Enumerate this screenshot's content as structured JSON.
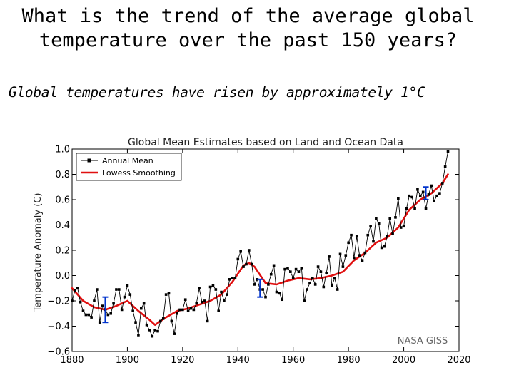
{
  "slide": {
    "title_line1": "What is the trend of the average global",
    "title_line2": "temperature over the past 150 years?",
    "subtitle": "Global temperatures have risen by approximately 1°C"
  },
  "chart_data": {
    "type": "line",
    "title": "Global Mean Estimates based on Land and Ocean Data",
    "xlabel": "",
    "ylabel": "Temperature Anomaly (C)",
    "xlim": [
      1880,
      2020
    ],
    "ylim": [
      -0.6,
      1.0
    ],
    "xticks": [
      "1880",
      "1900",
      "1920",
      "1940",
      "1960",
      "1980",
      "2000",
      "2020"
    ],
    "yticks": [
      "1.0",
      "0.8",
      "0.6",
      "0.4",
      "0.2",
      "0.0",
      "−0.2",
      "−0.4",
      "−0.6"
    ],
    "xtick_values": [
      1880,
      1900,
      1920,
      1940,
      1960,
      1980,
      2000,
      2020
    ],
    "ytick_values": [
      1.0,
      0.8,
      0.6,
      0.4,
      0.2,
      0.0,
      -0.2,
      -0.4,
      -0.6
    ],
    "watermark": "NASA GISS",
    "legend_position": "top-left",
    "grid": false,
    "series": [
      {
        "name": "Annual Mean",
        "color": "#000000",
        "marker": "square",
        "x": [
          1880,
          1881,
          1882,
          1883,
          1884,
          1885,
          1886,
          1887,
          1888,
          1889,
          1890,
          1891,
          1892,
          1893,
          1894,
          1895,
          1896,
          1897,
          1898,
          1899,
          1900,
          1901,
          1902,
          1903,
          1904,
          1905,
          1906,
          1907,
          1908,
          1909,
          1910,
          1911,
          1912,
          1913,
          1914,
          1915,
          1916,
          1917,
          1918,
          1919,
          1920,
          1921,
          1922,
          1923,
          1924,
          1925,
          1926,
          1927,
          1928,
          1929,
          1930,
          1931,
          1932,
          1933,
          1934,
          1935,
          1936,
          1937,
          1938,
          1939,
          1940,
          1941,
          1942,
          1943,
          1944,
          1945,
          1946,
          1947,
          1948,
          1949,
          1950,
          1951,
          1952,
          1953,
          1954,
          1955,
          1956,
          1957,
          1958,
          1959,
          1960,
          1961,
          1962,
          1963,
          1964,
          1965,
          1966,
          1967,
          1968,
          1969,
          1970,
          1971,
          1972,
          1973,
          1974,
          1975,
          1976,
          1977,
          1978,
          1979,
          1980,
          1981,
          1982,
          1983,
          1984,
          1985,
          1986,
          1987,
          1988,
          1989,
          1990,
          1991,
          1992,
          1993,
          1994,
          1995,
          1996,
          1997,
          1998,
          1999,
          2000,
          2001,
          2002,
          2003,
          2004,
          2005,
          2006,
          2007,
          2008,
          2009,
          2010,
          2011,
          2012,
          2013,
          2014,
          2015,
          2016
        ],
        "values": [
          -0.2,
          -0.12,
          -0.1,
          -0.21,
          -0.28,
          -0.31,
          -0.31,
          -0.33,
          -0.2,
          -0.11,
          -0.37,
          -0.24,
          -0.27,
          -0.31,
          -0.3,
          -0.22,
          -0.11,
          -0.11,
          -0.27,
          -0.17,
          -0.08,
          -0.15,
          -0.28,
          -0.37,
          -0.47,
          -0.26,
          -0.22,
          -0.39,
          -0.43,
          -0.48,
          -0.43,
          -0.44,
          -0.36,
          -0.34,
          -0.15,
          -0.14,
          -0.36,
          -0.46,
          -0.3,
          -0.27,
          -0.27,
          -0.19,
          -0.28,
          -0.26,
          -0.27,
          -0.22,
          -0.1,
          -0.21,
          -0.2,
          -0.36,
          -0.09,
          -0.08,
          -0.11,
          -0.28,
          -0.13,
          -0.2,
          -0.15,
          -0.03,
          -0.02,
          -0.02,
          0.13,
          0.19,
          0.07,
          0.09,
          0.2,
          0.09,
          -0.07,
          -0.03,
          -0.11,
          -0.11,
          -0.17,
          -0.07,
          0.01,
          0.08,
          -0.13,
          -0.14,
          -0.19,
          0.05,
          0.06,
          0.03,
          -0.02,
          0.05,
          0.03,
          0.06,
          -0.2,
          -0.11,
          -0.06,
          -0.02,
          -0.07,
          0.07,
          0.03,
          -0.09,
          0.02,
          0.15,
          -0.08,
          -0.02,
          -0.11,
          0.17,
          0.07,
          0.16,
          0.26,
          0.32,
          0.14,
          0.31,
          0.16,
          0.12,
          0.18,
          0.32,
          0.39,
          0.27,
          0.45,
          0.41,
          0.22,
          0.23,
          0.31,
          0.45,
          0.33,
          0.46,
          0.61,
          0.38,
          0.39,
          0.53,
          0.63,
          0.62,
          0.53,
          0.68,
          0.63,
          0.66,
          0.53,
          0.64,
          0.71,
          0.59,
          0.63,
          0.65,
          0.73,
          0.86,
          0.98
        ]
      },
      {
        "name": "Lowess Smoothing",
        "color": "#e01010",
        "x": [
          1880,
          1884,
          1888,
          1892,
          1896,
          1900,
          1904,
          1908,
          1910,
          1914,
          1918,
          1922,
          1926,
          1930,
          1934,
          1938,
          1942,
          1944,
          1946,
          1950,
          1954,
          1958,
          1962,
          1966,
          1970,
          1974,
          1978,
          1982,
          1986,
          1990,
          1994,
          1998,
          2002,
          2006,
          2010,
          2014,
          2016
        ],
        "values": [
          -0.1,
          -0.2,
          -0.25,
          -0.27,
          -0.24,
          -0.2,
          -0.28,
          -0.35,
          -0.39,
          -0.33,
          -0.28,
          -0.26,
          -0.23,
          -0.2,
          -0.15,
          -0.05,
          0.08,
          0.1,
          0.07,
          -0.06,
          -0.07,
          -0.04,
          -0.02,
          -0.03,
          -0.02,
          0.0,
          0.03,
          0.12,
          0.18,
          0.26,
          0.3,
          0.38,
          0.52,
          0.6,
          0.65,
          0.73,
          0.8
        ]
      }
    ],
    "error_bars": {
      "color": "#0033cc",
      "bars": [
        {
          "x": 1892,
          "low": -0.37,
          "high": -0.17
        },
        {
          "x": 1948,
          "low": -0.17,
          "high": -0.03
        },
        {
          "x": 2008,
          "low": 0.6,
          "high": 0.7
        }
      ]
    }
  }
}
